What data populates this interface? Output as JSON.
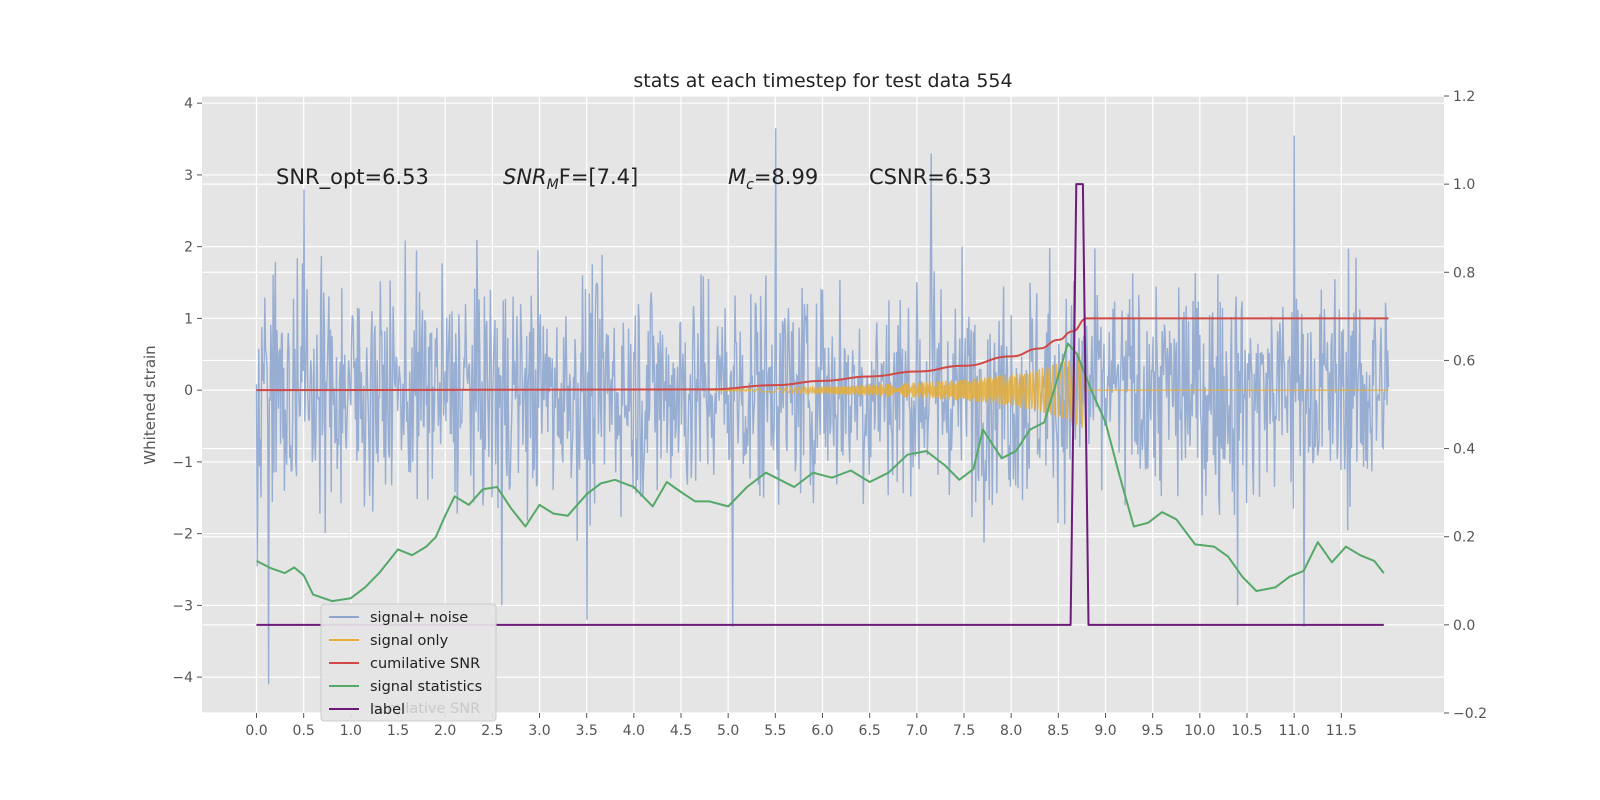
{
  "chart_data": {
    "type": "line",
    "title": "stats at each timestep for test data 554",
    "ylabel": "Whitened strain",
    "xlabel": "",
    "xlim": [
      -0.6,
      12.6
    ],
    "ylim": [
      -4.5,
      4.1
    ],
    "y2lim": [
      -0.2,
      1.2
    ],
    "x_ticks": [
      0.0,
      0.5,
      1.0,
      1.5,
      2.0,
      2.5,
      3.0,
      3.5,
      4.0,
      4.5,
      5.0,
      5.5,
      6.0,
      6.5,
      7.0,
      7.5,
      8.0,
      8.5,
      9.0,
      9.5,
      10.0,
      10.5,
      11.0,
      11.5
    ],
    "x_tick_labels": [
      "0.0",
      "0.5",
      "1.0",
      "1.5",
      "2.0",
      "2.5",
      "3.0",
      "3.5",
      "4.0",
      "4.5",
      "5.0",
      "5.5",
      "6.0",
      "6.5",
      "7.0",
      "7.5",
      "8.0",
      "8.5",
      "9.0",
      "9.5",
      "10.0",
      "10.5",
      "11.0",
      "11.5"
    ],
    "y_ticks": [
      -4,
      -3,
      -2,
      -1,
      0,
      1,
      2,
      3,
      4
    ],
    "y_tick_labels": [
      "−4",
      "−3",
      "−2",
      "−1",
      "0",
      "1",
      "2",
      "3",
      "4"
    ],
    "y2_ticks": [
      -0.2,
      0.0,
      0.2,
      0.4,
      0.6,
      0.8,
      1.0,
      1.2
    ],
    "y2_tick_labels": [
      "−0.2",
      "0.0",
      "0.2",
      "0.4",
      "0.6",
      "0.8",
      "1.0",
      "1.2"
    ],
    "grid": true,
    "legend_position": "lower-left",
    "annotations": [
      "SNR_opt=6.53",
      "SNR",
      "M",
      "F=[7.4]",
      "M",
      "c",
      "=8.99",
      "CSNR=6.53"
    ],
    "legend_hidden_text": "cumilative SNR",
    "noise_envelope": {
      "x_start": 0.0,
      "x_end": 12.0,
      "typical_abs_max": 1.9,
      "extreme_max": 3.65,
      "extreme_min": -4.1
    },
    "series": [
      {
        "name": "signal+ noise",
        "axis": "left",
        "color": "#8ea6cf",
        "spikes": [
          {
            "x": 0.13,
            "y": -4.1
          },
          {
            "x": 0.5,
            "y": 2.8
          },
          {
            "x": 2.6,
            "y": -3.0
          },
          {
            "x": 3.5,
            "y": -3.2
          },
          {
            "x": 5.05,
            "y": -3.3
          },
          {
            "x": 5.5,
            "y": 3.65
          },
          {
            "x": 6.0,
            "y": 1.4
          },
          {
            "x": 7.15,
            "y": 3.3
          },
          {
            "x": 10.4,
            "y": -3.0
          },
          {
            "x": 11.0,
            "y": 3.55
          },
          {
            "x": 11.1,
            "y": -3.3
          }
        ]
      },
      {
        "name": "signal only",
        "axis": "left",
        "color": "#e5ae38",
        "envelope": [
          {
            "x": 4.8,
            "a": 0.0
          },
          {
            "x": 5.5,
            "a": 0.03
          },
          {
            "x": 6.0,
            "a": 0.05
          },
          {
            "x": 6.5,
            "a": 0.08
          },
          {
            "x": 7.0,
            "a": 0.11
          },
          {
            "x": 7.5,
            "a": 0.15
          },
          {
            "x": 8.0,
            "a": 0.22
          },
          {
            "x": 8.3,
            "a": 0.3
          },
          {
            "x": 8.5,
            "a": 0.38
          },
          {
            "x": 8.65,
            "a": 0.45
          },
          {
            "x": 8.75,
            "a": 0.55
          },
          {
            "x": 8.8,
            "a": 0.0
          },
          {
            "x": 12.0,
            "a": 0.0
          }
        ]
      },
      {
        "name": "cumilative SNR",
        "axis": "left",
        "color": "#d04945",
        "points": [
          {
            "x": 0.0,
            "y": 0.0
          },
          {
            "x": 4.8,
            "y": 0.01
          },
          {
            "x": 5.5,
            "y": 0.07
          },
          {
            "x": 6.0,
            "y": 0.13
          },
          {
            "x": 6.5,
            "y": 0.19
          },
          {
            "x": 7.0,
            "y": 0.26
          },
          {
            "x": 7.5,
            "y": 0.34
          },
          {
            "x": 8.0,
            "y": 0.47
          },
          {
            "x": 8.3,
            "y": 0.58
          },
          {
            "x": 8.5,
            "y": 0.7
          },
          {
            "x": 8.65,
            "y": 0.82
          },
          {
            "x": 8.8,
            "y": 1.0
          },
          {
            "x": 12.0,
            "y": 1.0
          }
        ]
      },
      {
        "name": "signal statistics",
        "axis": "left",
        "color": "#55a868",
        "points": [
          {
            "x": 0.0,
            "y": -2.38
          },
          {
            "x": 0.15,
            "y": -2.48
          },
          {
            "x": 0.3,
            "y": -2.55
          },
          {
            "x": 0.4,
            "y": -2.47
          },
          {
            "x": 0.5,
            "y": -2.58
          },
          {
            "x": 0.6,
            "y": -2.85
          },
          {
            "x": 0.8,
            "y": -2.94
          },
          {
            "x": 1.0,
            "y": -2.9
          },
          {
            "x": 1.15,
            "y": -2.75
          },
          {
            "x": 1.3,
            "y": -2.55
          },
          {
            "x": 1.5,
            "y": -2.22
          },
          {
            "x": 1.65,
            "y": -2.3
          },
          {
            "x": 1.8,
            "y": -2.18
          },
          {
            "x": 1.9,
            "y": -2.05
          },
          {
            "x": 2.0,
            "y": -1.75
          },
          {
            "x": 2.1,
            "y": -1.48
          },
          {
            "x": 2.25,
            "y": -1.6
          },
          {
            "x": 2.4,
            "y": -1.38
          },
          {
            "x": 2.55,
            "y": -1.35
          },
          {
            "x": 2.7,
            "y": -1.65
          },
          {
            "x": 2.85,
            "y": -1.9
          },
          {
            "x": 3.0,
            "y": -1.6
          },
          {
            "x": 3.15,
            "y": -1.72
          },
          {
            "x": 3.3,
            "y": -1.75
          },
          {
            "x": 3.5,
            "y": -1.45
          },
          {
            "x": 3.65,
            "y": -1.3
          },
          {
            "x": 3.8,
            "y": -1.25
          },
          {
            "x": 4.0,
            "y": -1.35
          },
          {
            "x": 4.2,
            "y": -1.62
          },
          {
            "x": 4.35,
            "y": -1.28
          },
          {
            "x": 4.5,
            "y": -1.42
          },
          {
            "x": 4.65,
            "y": -1.55
          },
          {
            "x": 4.8,
            "y": -1.55
          },
          {
            "x": 5.0,
            "y": -1.62
          },
          {
            "x": 5.2,
            "y": -1.35
          },
          {
            "x": 5.4,
            "y": -1.15
          },
          {
            "x": 5.55,
            "y": -1.25
          },
          {
            "x": 5.7,
            "y": -1.35
          },
          {
            "x": 5.9,
            "y": -1.15
          },
          {
            "x": 6.1,
            "y": -1.22
          },
          {
            "x": 6.3,
            "y": -1.12
          },
          {
            "x": 6.5,
            "y": -1.28
          },
          {
            "x": 6.7,
            "y": -1.15
          },
          {
            "x": 6.9,
            "y": -0.9
          },
          {
            "x": 7.1,
            "y": -0.85
          },
          {
            "x": 7.3,
            "y": -1.05
          },
          {
            "x": 7.45,
            "y": -1.25
          },
          {
            "x": 7.6,
            "y": -1.1
          },
          {
            "x": 7.7,
            "y": -0.55
          },
          {
            "x": 7.8,
            "y": -0.75
          },
          {
            "x": 7.9,
            "y": -0.95
          },
          {
            "x": 8.05,
            "y": -0.85
          },
          {
            "x": 8.2,
            "y": -0.55
          },
          {
            "x": 8.35,
            "y": -0.45
          },
          {
            "x": 8.5,
            "y": 0.2
          },
          {
            "x": 8.6,
            "y": 0.65
          },
          {
            "x": 8.7,
            "y": 0.5
          },
          {
            "x": 8.85,
            "y": 0.0
          },
          {
            "x": 9.0,
            "y": -0.45
          },
          {
            "x": 9.15,
            "y": -1.2
          },
          {
            "x": 9.3,
            "y": -1.9
          },
          {
            "x": 9.45,
            "y": -1.85
          },
          {
            "x": 9.6,
            "y": -1.7
          },
          {
            "x": 9.75,
            "y": -1.8
          },
          {
            "x": 9.95,
            "y": -2.15
          },
          {
            "x": 10.15,
            "y": -2.18
          },
          {
            "x": 10.3,
            "y": -2.32
          },
          {
            "x": 10.45,
            "y": -2.6
          },
          {
            "x": 10.6,
            "y": -2.8
          },
          {
            "x": 10.8,
            "y": -2.75
          },
          {
            "x": 10.95,
            "y": -2.6
          },
          {
            "x": 11.1,
            "y": -2.52
          },
          {
            "x": 11.25,
            "y": -2.12
          },
          {
            "x": 11.4,
            "y": -2.4
          },
          {
            "x": 11.55,
            "y": -2.18
          },
          {
            "x": 11.7,
            "y": -2.3
          },
          {
            "x": 11.85,
            "y": -2.38
          },
          {
            "x": 11.95,
            "y": -2.55
          }
        ]
      },
      {
        "name": "label",
        "axis": "right",
        "color": "#6e1a7a",
        "points": [
          {
            "x": 0.0,
            "y": 0.0
          },
          {
            "x": 8.63,
            "y": 0.0
          },
          {
            "x": 8.69,
            "y": 1.0
          },
          {
            "x": 8.76,
            "y": 1.0
          },
          {
            "x": 8.82,
            "y": 0.0
          },
          {
            "x": 11.95,
            "y": 0.0
          }
        ]
      }
    ]
  }
}
